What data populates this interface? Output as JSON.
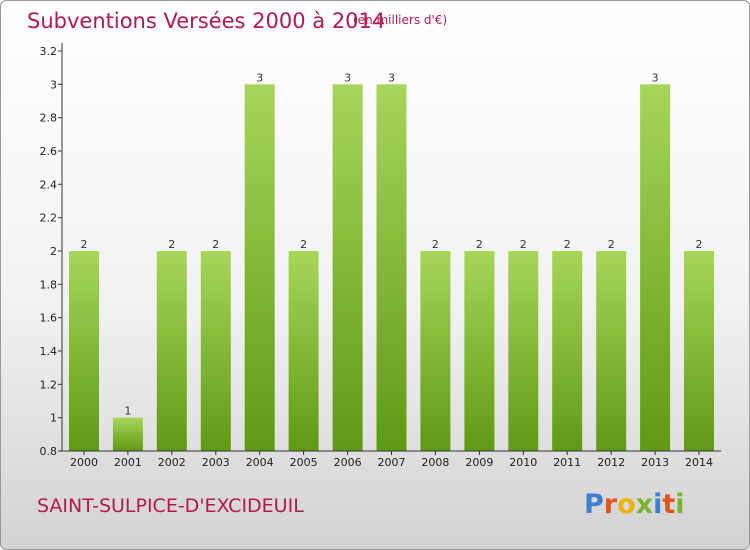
{
  "header": {
    "title": "Subventions Versées 2000 à 2014",
    "subtitle": "(en milliers d'€)"
  },
  "footer": {
    "commune": "SAINT-SULPICE-D'EXCIDEUIL",
    "logo_letters": [
      "P",
      "r",
      "o",
      "x",
      "i",
      "t",
      "i"
    ],
    "logo_colors": [
      "#3b7fd1",
      "#e2541d",
      "#f0b400",
      "#7ab332",
      "#3b7fd1",
      "#e2541d",
      "#7ab332"
    ]
  },
  "chart_data": {
    "type": "bar",
    "title": "Subventions Versées 2000 à 2014",
    "subtitle": "(en milliers d'€)",
    "categories": [
      "2000",
      "2001",
      "2002",
      "2003",
      "2004",
      "2005",
      "2006",
      "2007",
      "2008",
      "2009",
      "2010",
      "2011",
      "2012",
      "2013",
      "2014"
    ],
    "values": [
      2,
      1,
      2,
      2,
      3,
      2,
      3,
      3,
      2,
      2,
      2,
      2,
      2,
      3,
      2
    ],
    "data_labels": [
      "2",
      "1",
      "2",
      "2",
      "3",
      "2",
      "3",
      "3",
      "2",
      "2",
      "2",
      "2",
      "2",
      "3",
      "2"
    ],
    "y_ticks": [
      0.8,
      1,
      1.2,
      1.4,
      1.6,
      1.8,
      2,
      2.2,
      2.4,
      2.6,
      2.8,
      3,
      3.2
    ],
    "y_tick_labels": [
      "0.8",
      "1",
      "1.2",
      "1.4",
      "1.6",
      "1.8",
      "2",
      "2.2",
      "2.4",
      "2.6",
      "2.8",
      "3",
      "3.2"
    ],
    "ylim": [
      0.8,
      3.2
    ],
    "xlabel": "",
    "ylabel": "",
    "grid": false,
    "bar_color_light": "#a6d65a",
    "bar_color_dark": "#5f9a14",
    "axis_color": "#333333"
  }
}
